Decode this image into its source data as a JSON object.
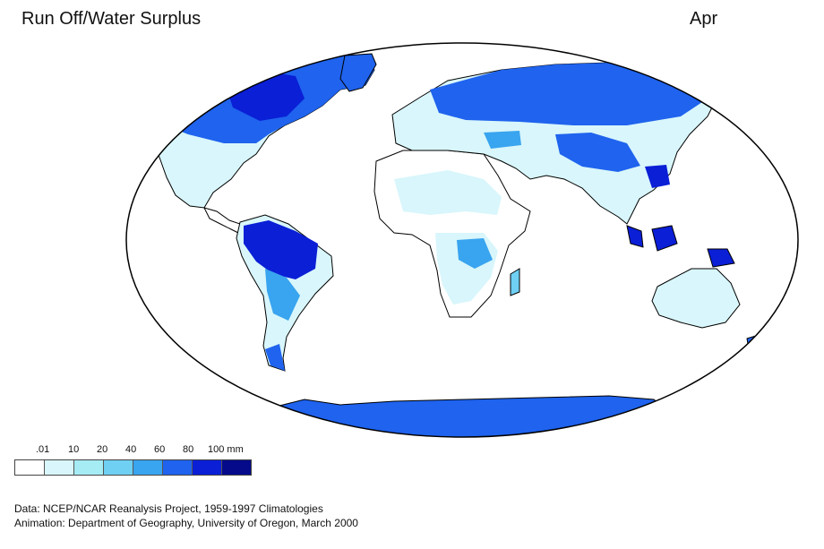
{
  "title": "Run Off/Water Surplus",
  "month": "Apr",
  "legend": {
    "labels": [
      ".01",
      "10",
      "20",
      "40",
      "60",
      "80",
      "100 mm"
    ],
    "colors": [
      "#ffffff",
      "#d8f6fb",
      "#a6ecf5",
      "#6fd0f3",
      "#39a4ef",
      "#1f63ee",
      "#0a1fd6",
      "#040a8a"
    ]
  },
  "credits": {
    "data": "Data:  NCEP/NCAR Reanalysis Project, 1959-1997 Climatologies",
    "animation": "Animation:  Department of Geography, University of Oregon, March 2000"
  }
}
